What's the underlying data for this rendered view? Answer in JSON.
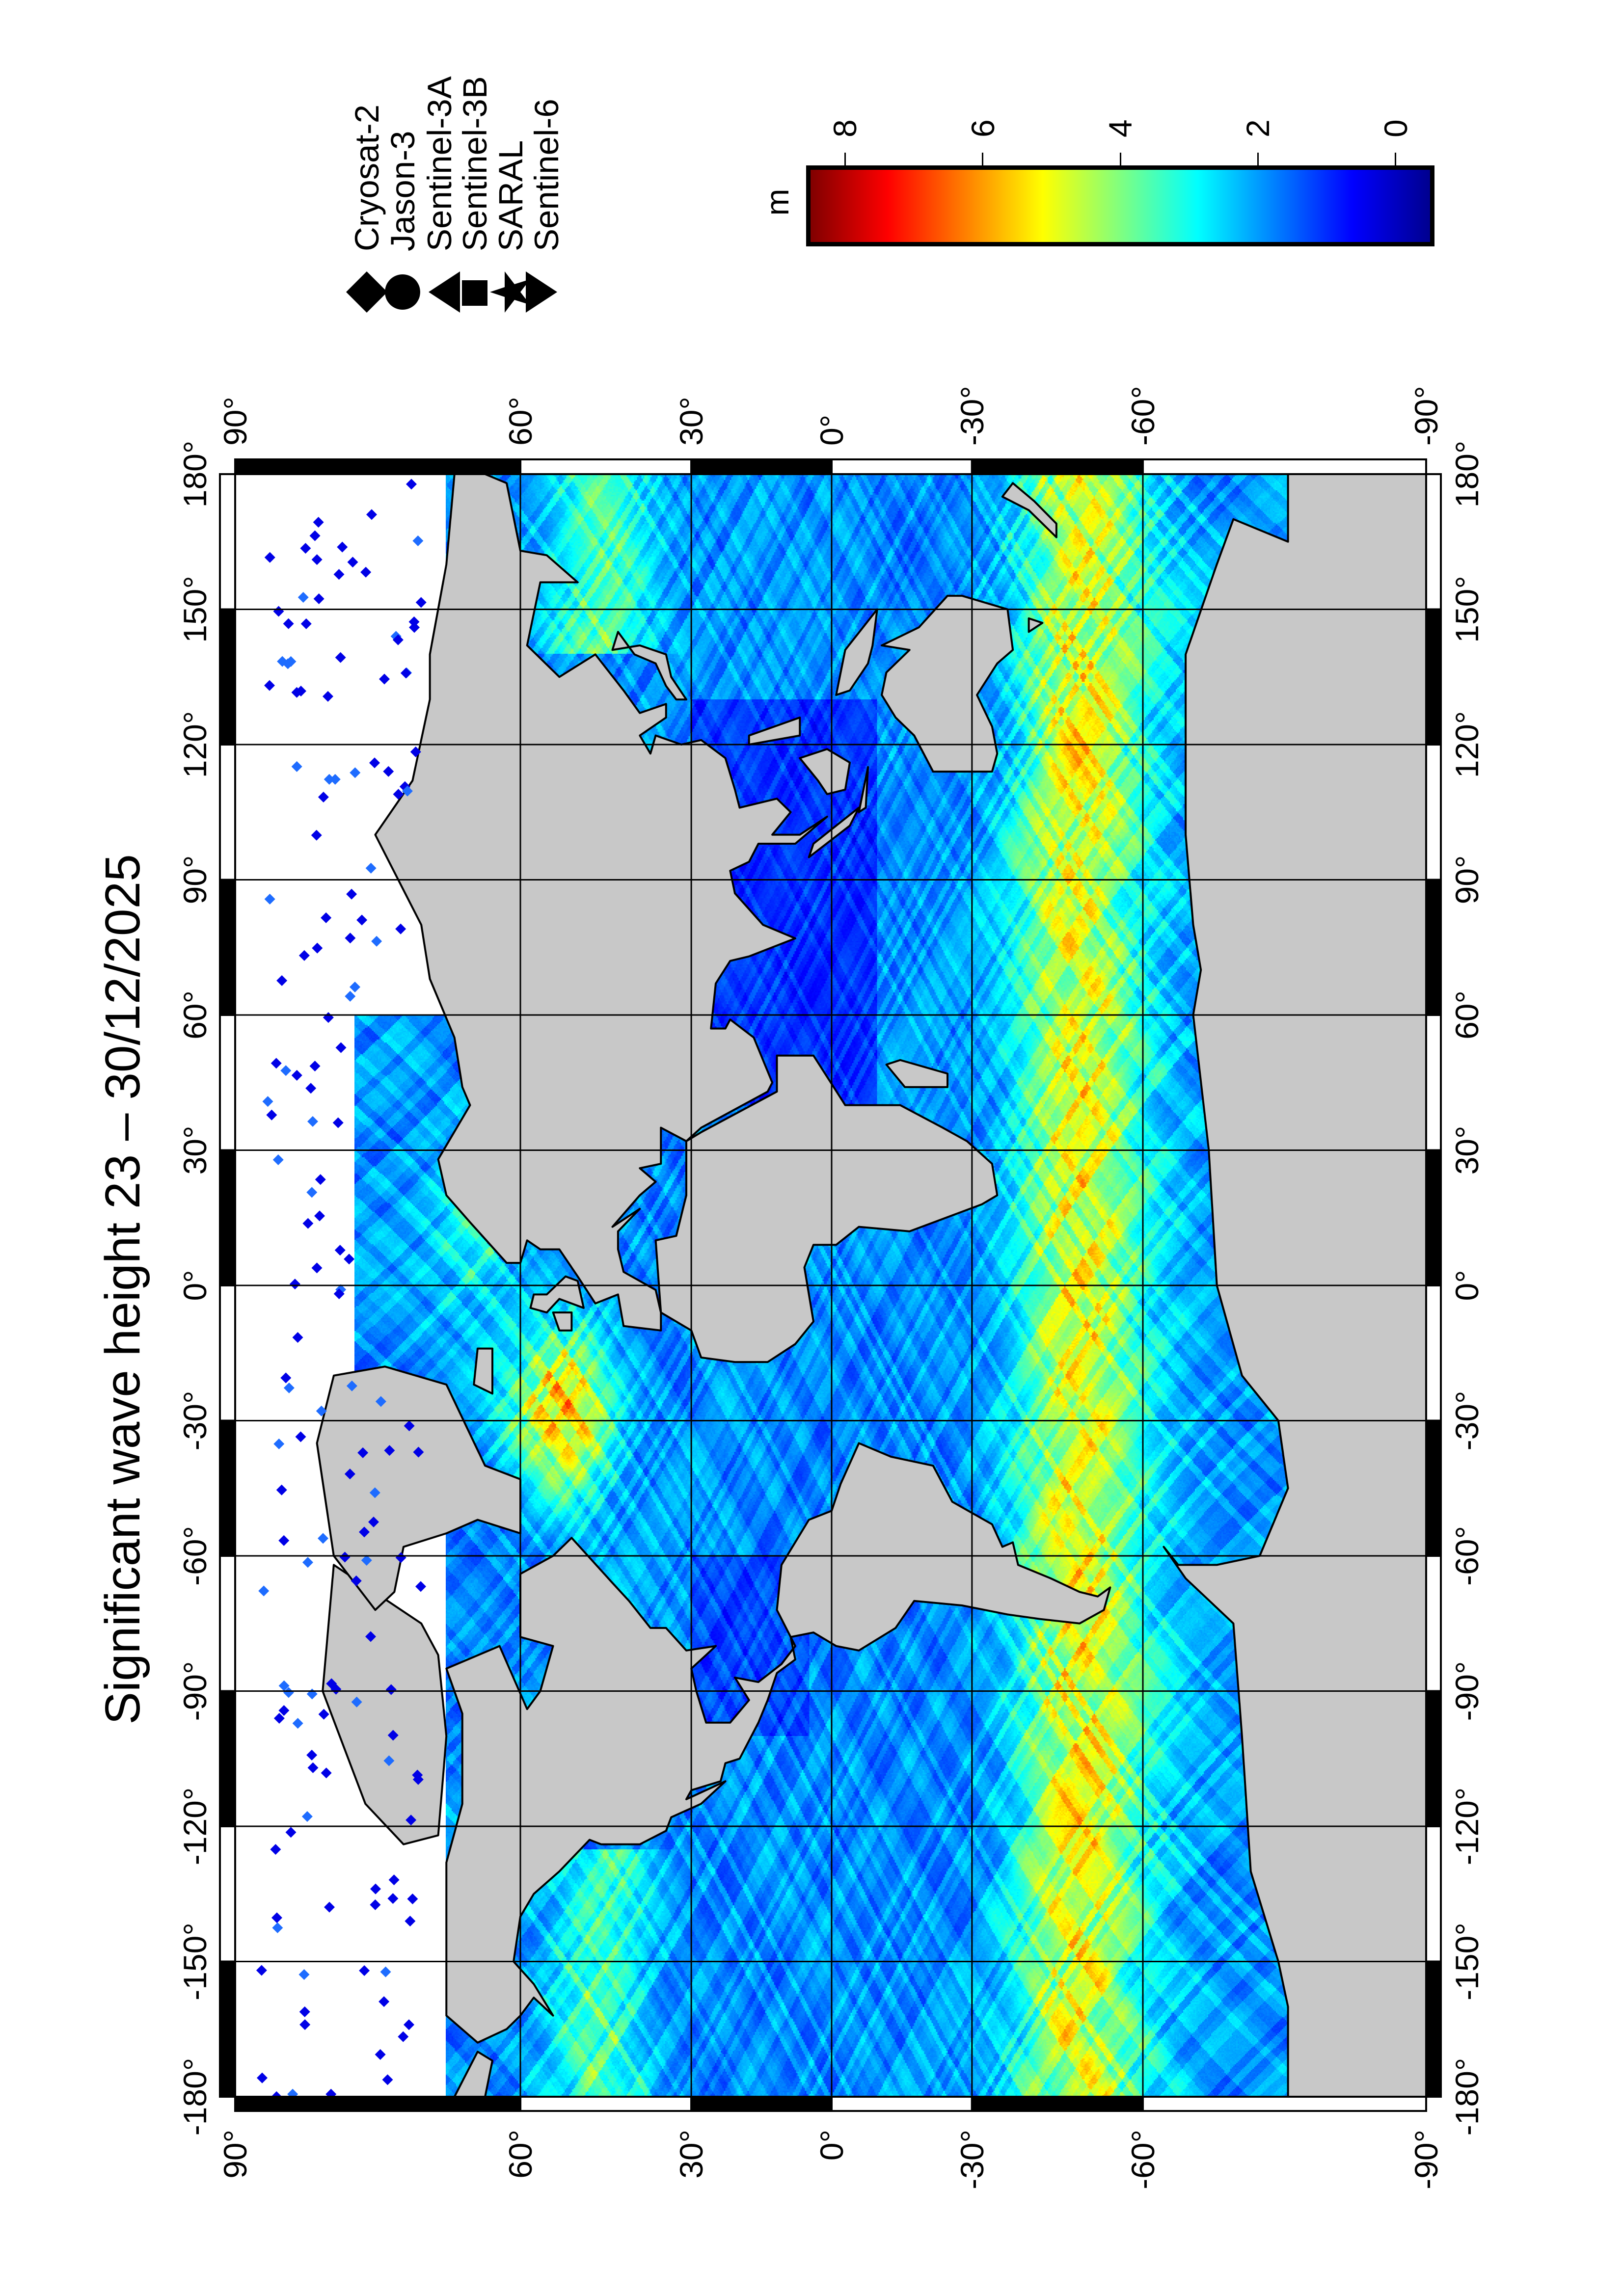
{
  "title": "Significant wave height 23 – 30/12/2025",
  "map": {
    "projection": "Miller cylindrical",
    "land_color": "#c8c8c8",
    "no_data_color": "#ffffff",
    "grid_spacing_deg": 30
  },
  "axes": {
    "lon_top": [
      {
        "value": -180,
        "label": "-180°"
      },
      {
        "value": -150,
        "label": "-150°"
      },
      {
        "value": -120,
        "label": "-120°"
      },
      {
        "value": -90,
        "label": "-90°"
      },
      {
        "value": -60,
        "label": "-60°"
      },
      {
        "value": -30,
        "label": "-30°"
      },
      {
        "value": 0,
        "label": "0°"
      },
      {
        "value": 30,
        "label": "30°"
      },
      {
        "value": 60,
        "label": "60°"
      },
      {
        "value": 90,
        "label": "90°"
      },
      {
        "value": 120,
        "label": "120°"
      },
      {
        "value": 150,
        "label": "150°"
      },
      {
        "value": 180,
        "label": "180°"
      }
    ],
    "lon_bottom": [
      {
        "value": -180,
        "label": "-180°"
      },
      {
        "value": -150,
        "label": "-150°"
      },
      {
        "value": -120,
        "label": "-120°"
      },
      {
        "value": -90,
        "label": "-90°"
      },
      {
        "value": -60,
        "label": "-60°"
      },
      {
        "value": -30,
        "label": "-30°"
      },
      {
        "value": 0,
        "label": "0°"
      },
      {
        "value": 30,
        "label": "30°"
      },
      {
        "value": 60,
        "label": "60°"
      },
      {
        "value": 90,
        "label": "90°"
      },
      {
        "value": 120,
        "label": "120°"
      },
      {
        "value": 150,
        "label": "150°"
      },
      {
        "value": 180,
        "label": "180°"
      }
    ],
    "lat_left": [
      {
        "value": 90,
        "label": "90°"
      },
      {
        "value": 60,
        "label": "60°"
      },
      {
        "value": 30,
        "label": "30°"
      },
      {
        "value": 0,
        "label": "0°"
      },
      {
        "value": -30,
        "label": "-30°"
      },
      {
        "value": -60,
        "label": "-60°"
      },
      {
        "value": -90,
        "label": "-90°"
      }
    ],
    "lat_right": [
      {
        "value": 90,
        "label": "90°"
      },
      {
        "value": 60,
        "label": "60°"
      },
      {
        "value": 30,
        "label": "30°"
      },
      {
        "value": 0,
        "label": "0°"
      },
      {
        "value": -30,
        "label": "-30°"
      },
      {
        "value": -60,
        "label": "-60°"
      },
      {
        "value": -90,
        "label": "-90°"
      }
    ]
  },
  "colorbar": {
    "unit": "m",
    "colormap": "jet",
    "range": [
      -0.5,
      8.5
    ],
    "ticks": [
      {
        "value": 8,
        "label": "8"
      },
      {
        "value": 6,
        "label": "6"
      },
      {
        "value": 4,
        "label": "4"
      },
      {
        "value": 2,
        "label": "2"
      },
      {
        "value": 0,
        "label": "0"
      }
    ]
  },
  "legend": [
    {
      "label": "Cryosat-2",
      "symbol": "diamond"
    },
    {
      "label": "Jason-3",
      "symbol": "circle"
    },
    {
      "label": "Sentinel-3A",
      "symbol": "triangle-up"
    },
    {
      "label": "Sentinel-3B",
      "symbol": "square"
    },
    {
      "label": "SARAL",
      "symbol": "star"
    },
    {
      "label": "Sentinel-6",
      "symbol": "triangle-down"
    }
  ]
}
